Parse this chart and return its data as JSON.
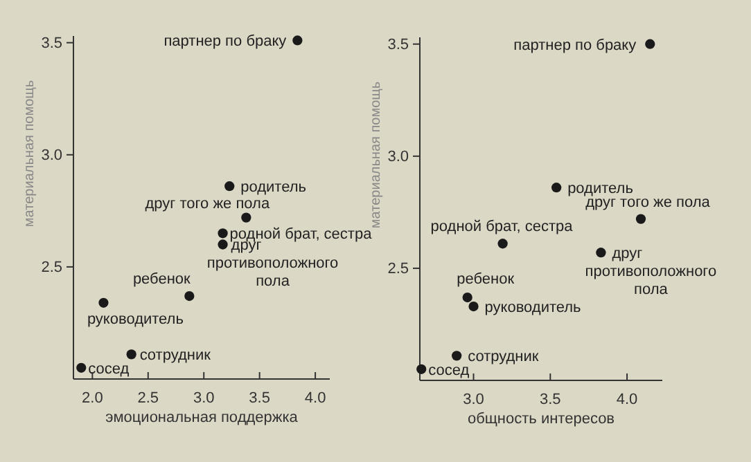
{
  "chart_data": [
    {
      "type": "scatter",
      "xlabel": "эмоциональная поддержка",
      "ylabel": "материальная помощь",
      "xlim": [
        1.83,
        4.13
      ],
      "ylim": [
        2.0,
        3.53
      ],
      "xticks": [
        {
          "value": 2,
          "label": "2.0"
        },
        {
          "value": 2.5,
          "label": "2.5"
        },
        {
          "value": 3,
          "label": "3.0"
        },
        {
          "value": 3.5,
          "label": "3.5"
        },
        {
          "value": 4,
          "label": "4.0"
        }
      ],
      "yticks": [
        {
          "value": 2.5,
          "label": "2.5"
        },
        {
          "value": 3,
          "label": "3.0"
        },
        {
          "value": 3.5,
          "label": "3.5"
        }
      ],
      "marker": "circle",
      "series": [
        {
          "color": "#1a1a1a",
          "x": [
            3.84,
            3.23,
            3.38,
            3.17,
            3.17,
            2.87,
            2.1,
            2.35,
            1.9
          ],
          "values": [
            3.51,
            2.86,
            2.72,
            2.65,
            2.6,
            2.37,
            2.34,
            2.11,
            2.05
          ]
        }
      ],
      "annotations": [
        {
          "text": "партнер по браку",
          "x": 3.84,
          "y": 3.51
        },
        {
          "text": "родитель",
          "x": 3.23,
          "y": 2.86
        },
        {
          "text": "друг того же пола",
          "x": 3.38,
          "y": 2.72
        },
        {
          "text": "родной брат, сестра",
          "x": 3.17,
          "y": 2.65
        },
        {
          "text": "друг противоположного пола",
          "x": 3.17,
          "y": 2.6
        },
        {
          "text": "ребенок",
          "x": 2.87,
          "y": 2.37
        },
        {
          "text": "руководитель",
          "x": 2.1,
          "y": 2.34
        },
        {
          "text": "сотрудник",
          "x": 2.35,
          "y": 2.11
        },
        {
          "text": "сосед",
          "x": 1.9,
          "y": 2.05
        }
      ]
    },
    {
      "type": "scatter",
      "xlabel": "общность интересов",
      "ylabel": "материальная помощь",
      "xlim": [
        2.65,
        4.23
      ],
      "ylim": [
        2.0,
        3.53
      ],
      "xticks": [
        {
          "value": 3,
          "label": "3.0"
        },
        {
          "value": 3.5,
          "label": "3.5"
        },
        {
          "value": 4,
          "label": "4.0"
        }
      ],
      "yticks": [
        {
          "value": 2.5,
          "label": "2.5"
        },
        {
          "value": 3,
          "label": "3.0"
        },
        {
          "value": 3.5,
          "label": "3.5"
        }
      ],
      "marker": "circle",
      "series": [
        {
          "color": "#1a1a1a",
          "x": [
            4.15,
            3.54,
            4.09,
            3.19,
            3.83,
            2.96,
            3.0,
            2.89,
            2.66
          ],
          "values": [
            3.5,
            2.86,
            2.72,
            2.61,
            2.57,
            2.37,
            2.33,
            2.11,
            2.05
          ]
        }
      ],
      "annotations": [
        {
          "text": "партнер по браку",
          "x": 4.15,
          "y": 3.5
        },
        {
          "text": "родитель",
          "x": 3.54,
          "y": 2.86
        },
        {
          "text": "друг того же пола",
          "x": 4.09,
          "y": 2.72
        },
        {
          "text": "родной брат, сестра",
          "x": 3.19,
          "y": 2.61
        },
        {
          "text": "друг противоположного пола",
          "x": 3.83,
          "y": 2.57
        },
        {
          "text": "ребенок",
          "x": 2.96,
          "y": 2.37
        },
        {
          "text": "руководитель",
          "x": 3.0,
          "y": 2.33
        },
        {
          "text": "сотрудник",
          "x": 2.89,
          "y": 2.11
        },
        {
          "text": "сосед",
          "x": 2.66,
          "y": 2.05
        }
      ]
    }
  ]
}
